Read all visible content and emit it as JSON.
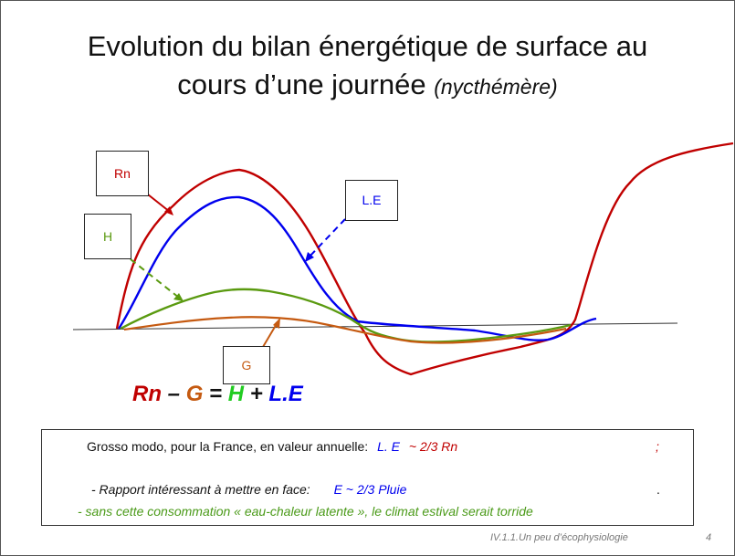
{
  "slide": {
    "title_line1": "Evolution du bilan énergétique de surface au",
    "title_line2_main": "cours d’une journée",
    "title_line2_italic": "(nycthémère)"
  },
  "labels": {
    "rn": "Rn",
    "le": "L.E",
    "h": "H",
    "g": "G"
  },
  "equation": {
    "rn": "Rn",
    "minus": " – ",
    "g": "G",
    "equals": " = ",
    "h": "H",
    "plus": " + ",
    "le": "L.E"
  },
  "info": {
    "line1_prefix": "Grosso modo, pour la France, en valeur annuelle:",
    "line1_le": "L. E",
    "line1_rn": "~ 2/3 Rn",
    "line1_end": ";",
    "line2_prefix": "- Rapport intéressant à mettre en face:",
    "line2_value": "E ~ 2/3 Pluie",
    "line2_end": ".",
    "line3": "- sans cette consommation « eau-chaleur latente », le climat estival serait torride"
  },
  "footer": {
    "section": "IV.1.1.Un peu d’écophysiologie",
    "page": "4"
  },
  "colors": {
    "rn": "#c00000",
    "le": "#0000ee",
    "h": "#5a9a10",
    "g": "#c55a11",
    "h_equation": "#22cc22"
  }
}
